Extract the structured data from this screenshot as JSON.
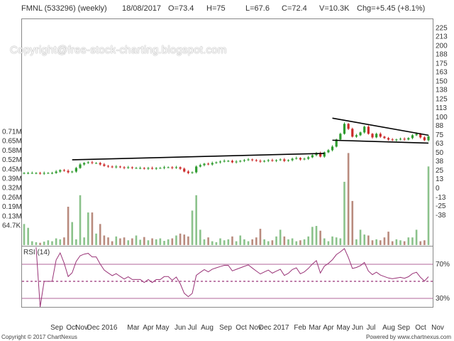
{
  "header": {
    "symbol": "FMNL (533296) (weekly)",
    "date": "18/08/2017",
    "open": "O=73.4",
    "high": "H=75",
    "low": "L=67.6",
    "close": "C=72.4",
    "volume": "V=10.3K",
    "change": "Chg=+5.45 (+8.1%)"
  },
  "watermark": "Copyright@free-stock-charting.blogspot.com",
  "footer": {
    "left": "Copyright © 2017 ChartNexus",
    "right": "Powered by www.chartnexus.com"
  },
  "colors": {
    "up": "#2e9b2e",
    "down": "#cc2a2a",
    "volume": "#b98b7e",
    "volume_up": "#8bc28b",
    "rsi": "#993377",
    "frame": "#888888",
    "trend": "#000000"
  },
  "chart_data": [
    {
      "type": "candlestick",
      "price_ticks": [
        225,
        213,
        200,
        188,
        175,
        163,
        150,
        138,
        125,
        113,
        100,
        88,
        75,
        63,
        50,
        38,
        25,
        13,
        0,
        -13,
        -25,
        -38
      ],
      "xlabels": [
        "Sep",
        "Oct",
        "Nov",
        "Dec 2016",
        "Mar",
        "Apr",
        "May",
        "Jun",
        "Jul",
        "Aug",
        "Sep",
        "Oct",
        "Nov",
        "Dec 2017",
        "Feb",
        "Mar",
        "Apr",
        "May",
        "Jun",
        "Jul",
        "Aug",
        "Sep",
        "Oct",
        "Nov"
      ],
      "close": [
        21,
        21,
        21,
        21,
        20,
        21,
        21,
        21,
        23,
        25,
        24,
        22,
        23,
        28,
        33,
        35,
        36,
        35,
        35,
        33,
        31,
        30,
        29,
        30,
        29,
        28,
        29,
        28,
        28,
        28,
        27,
        28,
        27,
        28,
        28,
        29,
        29,
        28,
        29,
        27,
        23,
        21,
        22,
        30,
        32,
        34,
        33,
        35,
        36,
        37,
        38,
        38,
        36,
        37,
        38,
        39,
        40,
        39,
        38,
        37,
        38,
        39,
        38,
        39,
        40,
        38,
        39,
        41,
        42,
        40,
        41,
        43,
        46,
        49,
        44,
        50,
        53,
        58,
        68,
        76,
        90,
        83,
        72,
        74,
        78,
        86,
        76,
        71,
        76,
        72,
        70,
        68,
        67,
        68,
        69,
        68,
        70,
        74,
        76,
        71,
        67,
        72.4
      ],
      "volume_ticks": [
        "0.71M",
        "0.65M",
        "0.58M",
        "0.52M",
        "0.45M",
        "0.39M",
        "0.32M",
        "0.26M",
        "0.19M",
        "0.13M",
        "64.7K"
      ],
      "volume": [
        110,
        90,
        20,
        15,
        12,
        18,
        25,
        20,
        35,
        30,
        40,
        200,
        120,
        30,
        260,
        40,
        170,
        170,
        60,
        110,
        50,
        40,
        20,
        45,
        35,
        40,
        25,
        35,
        50,
        28,
        42,
        25,
        35,
        30,
        35,
        22,
        30,
        35,
        50,
        60,
        55,
        45,
        180,
        260,
        80,
        30,
        40,
        20,
        15,
        35,
        25,
        30,
        45,
        20,
        50,
        30,
        20,
        30,
        40,
        85,
        30,
        20,
        25,
        45,
        80,
        45,
        30,
        35,
        20,
        25,
        30,
        45,
        95,
        100,
        75,
        35,
        20,
        45,
        40,
        35,
        330,
        480,
        230,
        30,
        80,
        55,
        50,
        25,
        30,
        25,
        40,
        70,
        20,
        30,
        25,
        20,
        40,
        40,
        80,
        20,
        25,
        410
      ],
      "trendlines": [
        {
          "from": {
            "bar": 12,
            "price": 39.5
          },
          "to": {
            "bar": 75,
            "price": 48.5
          }
        },
        {
          "from": {
            "bar": 77,
            "price": 98
          },
          "to": {
            "bar": 101,
            "price": 74
          }
        },
        {
          "from": {
            "bar": 77,
            "price": 67
          },
          "to": {
            "bar": 101,
            "price": 63
          }
        }
      ]
    },
    {
      "type": "line",
      "title": "RSI (14)",
      "levels": [
        70,
        30
      ],
      "level_labels": [
        "70%",
        "30%"
      ],
      "ylim": [
        20,
        90
      ]
    }
  ]
}
